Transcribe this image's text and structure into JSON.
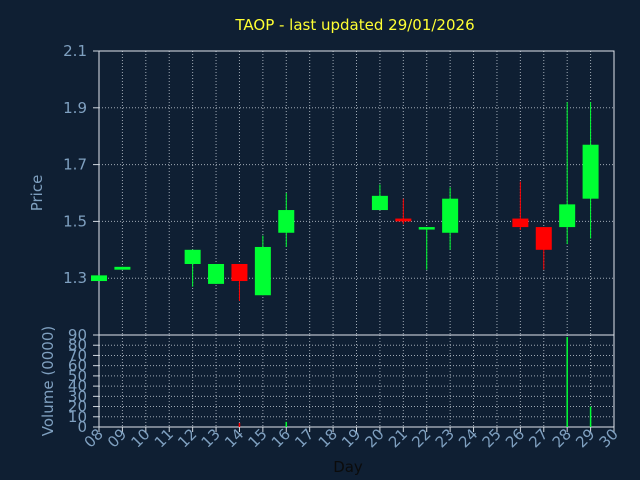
{
  "chart_data": {
    "type": "candlestick",
    "title": "TAOP - last updated 29/01/2026",
    "xlabel": "Day",
    "days": [
      "08",
      "09",
      "10",
      "11",
      "12",
      "13",
      "14",
      "15",
      "16",
      "17",
      "18",
      "19",
      "20",
      "21",
      "22",
      "23",
      "24",
      "25",
      "26",
      "27",
      "28",
      "29",
      "30"
    ],
    "price_panel": {
      "ylabel": "Price",
      "ylim": [
        1.1,
        2.1
      ],
      "yticks": [
        "1.3",
        "1.5",
        "1.7",
        "1.9",
        "2.1"
      ],
      "grid": true,
      "candles": [
        {
          "day": "08",
          "open": 1.29,
          "high": 1.31,
          "low": 1.29,
          "close": 1.31,
          "direction": "up"
        },
        {
          "day": "09",
          "open": 1.33,
          "high": 1.34,
          "low": 1.33,
          "close": 1.34,
          "direction": "up"
        },
        {
          "day": "12",
          "open": 1.35,
          "high": 1.4,
          "low": 1.27,
          "close": 1.4,
          "direction": "up"
        },
        {
          "day": "13",
          "open": 1.28,
          "high": 1.35,
          "low": 1.28,
          "close": 1.35,
          "direction": "up"
        },
        {
          "day": "14",
          "open": 1.35,
          "high": 1.35,
          "low": 1.22,
          "close": 1.29,
          "direction": "down"
        },
        {
          "day": "15",
          "open": 1.24,
          "high": 1.45,
          "low": 1.24,
          "close": 1.41,
          "direction": "up"
        },
        {
          "day": "16",
          "open": 1.46,
          "high": 1.6,
          "low": 1.41,
          "close": 1.54,
          "direction": "up"
        },
        {
          "day": "20",
          "open": 1.54,
          "high": 1.63,
          "low": 1.54,
          "close": 1.59,
          "direction": "up"
        },
        {
          "day": "21",
          "open": 1.51,
          "high": 1.58,
          "low": 1.49,
          "close": 1.5,
          "direction": "down"
        },
        {
          "day": "22",
          "open": 1.48,
          "high": 1.48,
          "low": 1.33,
          "close": 1.48,
          "direction": "up"
        },
        {
          "day": "23",
          "open": 1.46,
          "high": 1.62,
          "low": 1.4,
          "close": 1.58,
          "direction": "up"
        },
        {
          "day": "26",
          "open": 1.51,
          "high": 1.64,
          "low": 1.47,
          "close": 1.48,
          "direction": "down"
        },
        {
          "day": "27",
          "open": 1.48,
          "high": 1.48,
          "low": 1.33,
          "close": 1.4,
          "direction": "down"
        },
        {
          "day": "28",
          "open": 1.48,
          "high": 1.92,
          "low": 1.42,
          "close": 1.56,
          "direction": "up"
        },
        {
          "day": "29",
          "open": 1.58,
          "high": 1.92,
          "low": 1.44,
          "close": 1.77,
          "direction": "up"
        }
      ]
    },
    "volume_panel": {
      "ylabel": "Volume (0000)",
      "ylim": [
        0,
        90
      ],
      "yticks": [
        "0",
        "10",
        "20",
        "30",
        "40",
        "50",
        "60",
        "70",
        "80",
        "90"
      ],
      "bars": [
        {
          "day": "14",
          "value": 4,
          "direction": "down"
        },
        {
          "day": "16",
          "value": 5,
          "direction": "up"
        },
        {
          "day": "28",
          "value": 88,
          "direction": "up"
        },
        {
          "day": "29",
          "value": 20,
          "direction": "up"
        }
      ]
    },
    "colors": {
      "background": "#0f1f33",
      "up": "#00ff33",
      "down": "#ff0000",
      "grid": "#d0d8e0",
      "axis_text": "#7fa0c0",
      "title": "#ffff33"
    }
  }
}
